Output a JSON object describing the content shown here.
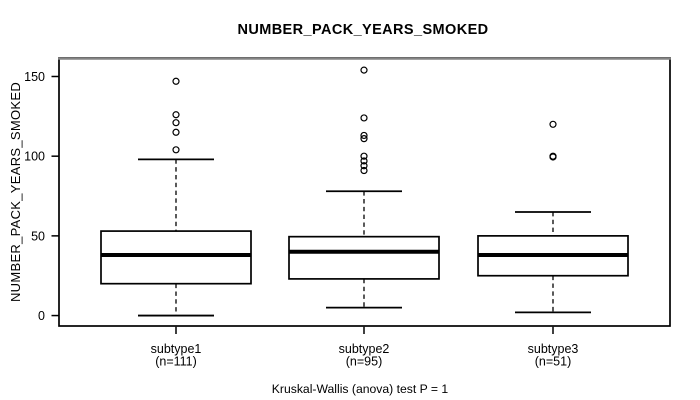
{
  "figure": {
    "background": "#ffffff",
    "foreground": "#000000",
    "frame_top_color": "#848484"
  },
  "chart_data": {
    "type": "boxplot",
    "title": "NUMBER_PACK_YEARS_SMOKED",
    "ylabel": "NUMBER_PACK_YEARS_SMOKED",
    "xlabel": "",
    "caption": "Kruskal-Wallis (anova) test P = 1",
    "yticks": [
      0,
      50,
      100,
      150
    ],
    "ylim": [
      -7,
      162
    ],
    "grid": false,
    "legend": "none",
    "groups": [
      {
        "label": "subtype1",
        "n_label": "(n=111)",
        "n": 111,
        "whisker_low": 0,
        "q1": 20,
        "median": 38,
        "q3": 53,
        "whisker_high": 98,
        "outliers": [
          104,
          115,
          121,
          126,
          147
        ]
      },
      {
        "label": "subtype2",
        "n_label": "(n=95)",
        "n": 95,
        "whisker_low": 5,
        "q1": 23,
        "median": 40,
        "q3": 49.5,
        "whisker_high": 78,
        "outliers": [
          91,
          94,
          97,
          100,
          111,
          113,
          124,
          154
        ]
      },
      {
        "label": "subtype3",
        "n_label": "(n=51)",
        "n": 51,
        "whisker_low": 2,
        "q1": 25,
        "median": 38,
        "q3": 50,
        "whisker_high": 65,
        "outliers": [
          99.5,
          100,
          120
        ]
      }
    ]
  }
}
